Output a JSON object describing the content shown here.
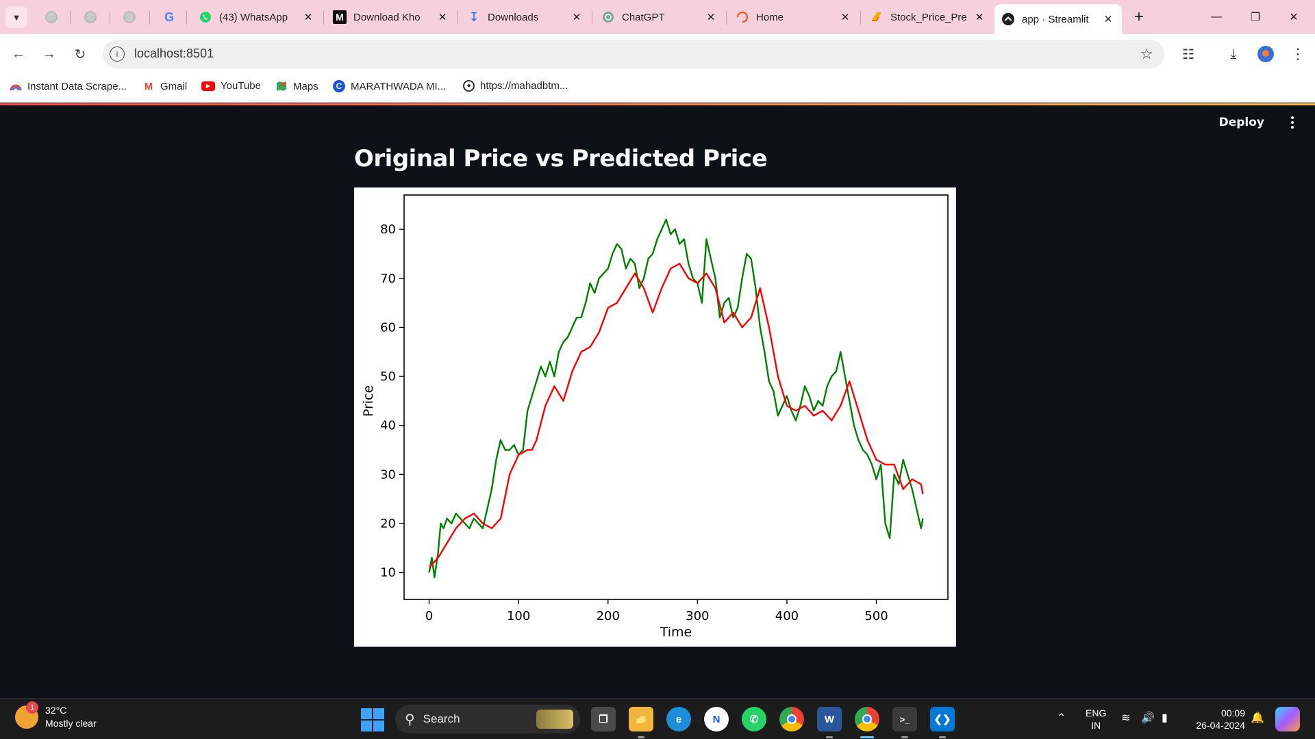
{
  "browser": {
    "tabs": [
      {
        "title": "(43) WhatsApp",
        "icon": "whatsapp-icon"
      },
      {
        "title": "Download Kho",
        "icon": "medium-icon"
      },
      {
        "title": "Downloads",
        "icon": "download-icon"
      },
      {
        "title": "ChatGPT",
        "icon": "chatgpt-icon"
      },
      {
        "title": "Home",
        "icon": "loading-icon"
      },
      {
        "title": "Stock_Price_Pre",
        "icon": "colab-icon"
      },
      {
        "title": "app · Streamlit",
        "icon": "streamlit-icon",
        "active": true
      }
    ],
    "url": "localhost:8501",
    "bookmarks": [
      {
        "label": "Instant Data Scrape...",
        "icon": "scraper-icon"
      },
      {
        "label": "Gmail",
        "icon": "gmail-icon"
      },
      {
        "label": "YouTube",
        "icon": "youtube-icon"
      },
      {
        "label": "Maps",
        "icon": "maps-icon"
      },
      {
        "label": "MARATHWADA MI...",
        "icon": "c-logo-icon"
      },
      {
        "label": "https://mahadbtm...",
        "icon": "globe-icon"
      }
    ]
  },
  "app": {
    "deploy_label": "Deploy",
    "title": "Original Price vs Predicted Price"
  },
  "chart_data": {
    "type": "line",
    "title": "",
    "xlabel": "Time",
    "ylabel": "Price",
    "xlim": [
      -28,
      580
    ],
    "ylim": [
      4.5,
      87
    ],
    "xticks": [
      0,
      100,
      200,
      300,
      400,
      500
    ],
    "yticks": [
      10,
      20,
      30,
      40,
      50,
      60,
      70,
      80
    ],
    "series": [
      {
        "color": "#008000",
        "x": [
          0,
          3,
          6,
          10,
          13,
          16,
          20,
          25,
          30,
          35,
          40,
          45,
          50,
          55,
          60,
          65,
          70,
          75,
          80,
          85,
          90,
          95,
          100,
          105,
          110,
          115,
          120,
          125,
          130,
          135,
          140,
          145,
          150,
          155,
          160,
          165,
          170,
          175,
          180,
          185,
          190,
          195,
          200,
          205,
          210,
          215,
          220,
          225,
          230,
          235,
          240,
          245,
          250,
          255,
          260,
          265,
          270,
          275,
          280,
          285,
          290,
          295,
          300,
          305,
          310,
          315,
          320,
          325,
          330,
          335,
          340,
          345,
          350,
          355,
          360,
          365,
          370,
          375,
          380,
          385,
          390,
          395,
          400,
          405,
          410,
          415,
          420,
          425,
          430,
          435,
          440,
          445,
          450,
          455,
          460,
          465,
          470,
          475,
          480,
          485,
          490,
          495,
          500,
          505,
          510,
          515,
          520,
          525,
          530,
          535,
          540,
          545,
          550,
          552
        ],
        "values": [
          10,
          13,
          9,
          14,
          20,
          19,
          21,
          20,
          22,
          21,
          20,
          19,
          21,
          20,
          19,
          23,
          27,
          33,
          37,
          35,
          35,
          36,
          34,
          35,
          43,
          46,
          49,
          52,
          50,
          53,
          50,
          55,
          57,
          58,
          60,
          62,
          62,
          65,
          69,
          67,
          70,
          71,
          72,
          75,
          77,
          76,
          72,
          74,
          73,
          68,
          70,
          74,
          75,
          78,
          80,
          82,
          79,
          80,
          77,
          78,
          73,
          70,
          69,
          65,
          78,
          74,
          70,
          62,
          65,
          66,
          62,
          64,
          70,
          75,
          74,
          68,
          60,
          55,
          49,
          47,
          42,
          44,
          46,
          43,
          41,
          44,
          48,
          46,
          43,
          45,
          44,
          48,
          50,
          51,
          55,
          50,
          45,
          40,
          37,
          35,
          34,
          32,
          29,
          32,
          20,
          17,
          30,
          28,
          33,
          30,
          27,
          23,
          19,
          21
        ]
      },
      {
        "color": "#ff0000",
        "x": [
          0,
          10,
          20,
          30,
          40,
          50,
          60,
          70,
          80,
          90,
          100,
          110,
          115,
          120,
          130,
          140,
          150,
          160,
          170,
          180,
          190,
          200,
          210,
          220,
          230,
          240,
          250,
          260,
          270,
          280,
          290,
          300,
          310,
          320,
          330,
          340,
          350,
          360,
          370,
          380,
          390,
          400,
          410,
          420,
          430,
          440,
          450,
          460,
          470,
          480,
          490,
          500,
          510,
          520,
          530,
          540,
          550,
          552
        ],
        "values": [
          11,
          13,
          16,
          19,
          21,
          22,
          20,
          19,
          21,
          30,
          34,
          35,
          35,
          37,
          44,
          48,
          45,
          51,
          55,
          56,
          59,
          64,
          65,
          68,
          71,
          68,
          63,
          68,
          72,
          73,
          70,
          69,
          71,
          68,
          61,
          63,
          60,
          62,
          68,
          60,
          50,
          44,
          43,
          44,
          42,
          43,
          41,
          44,
          49,
          43,
          37,
          33,
          32,
          32,
          27,
          29,
          28,
          26
        ]
      }
    ],
    "grid": false,
    "legend": "none"
  },
  "taskbar": {
    "temperature": "32°C",
    "weather": "Mostly clear",
    "weather_badge": "1",
    "search_placeholder": "Search",
    "lang_line1": "ENG",
    "lang_line2": "IN",
    "time": "00:09",
    "date": "26-04-2024"
  }
}
